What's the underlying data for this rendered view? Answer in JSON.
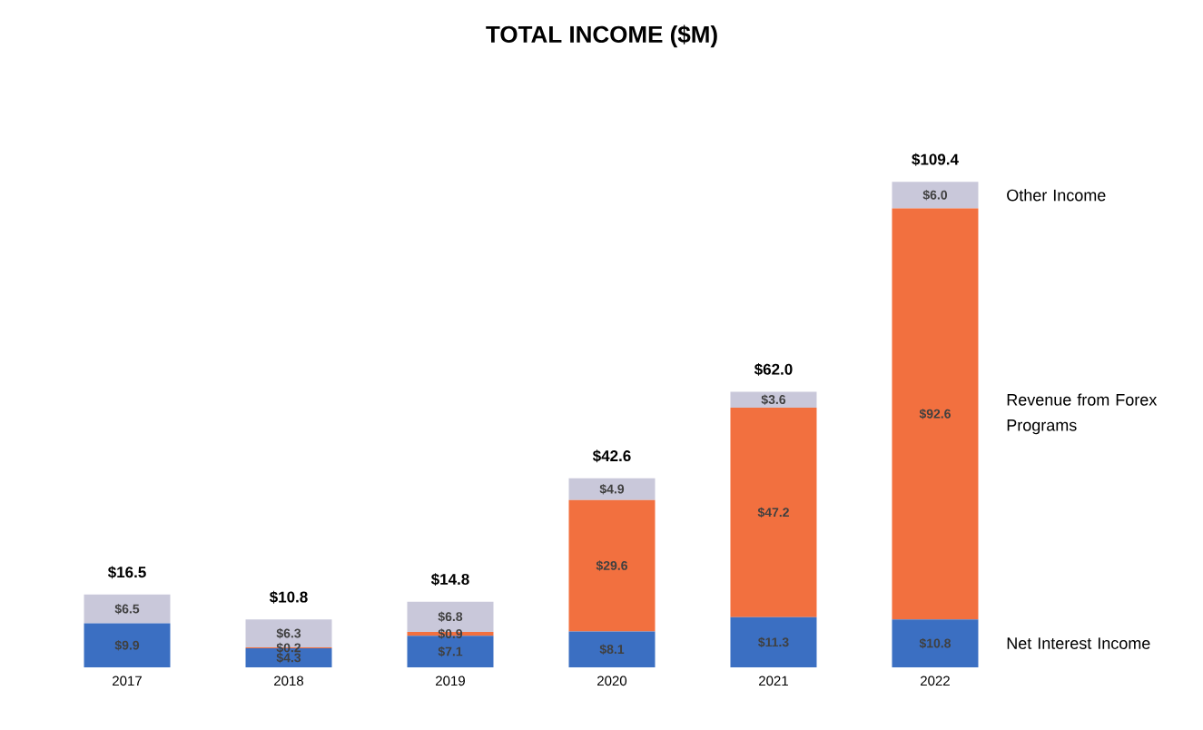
{
  "chart_data": {
    "type": "bar",
    "title": "TOTAL INCOME ($M)",
    "stacked": true,
    "legend": false,
    "categories": [
      "2017",
      "2018",
      "2019",
      "2020",
      "2021",
      "2022"
    ],
    "series": [
      {
        "name": "Net Interest Income",
        "color": "#3b6fc2",
        "values": [
          9.9,
          4.3,
          7.1,
          8.1,
          11.3,
          10.8
        ],
        "value_labels": [
          "$9.9",
          "$4.3",
          "$7.1",
          "$8.1",
          "$11.3",
          "$10.8"
        ]
      },
      {
        "name": "Revenue from Forex Programs",
        "color": "#f2703f",
        "values": [
          null,
          0.2,
          0.9,
          29.6,
          47.2,
          92.6
        ],
        "value_labels": [
          null,
          "$0.2",
          "$0.9",
          "$29.6",
          "$47.2",
          "$92.6"
        ]
      },
      {
        "name": "Other Income",
        "color": "#c9c8da",
        "values": [
          6.5,
          6.3,
          6.8,
          4.9,
          3.6,
          6.0
        ],
        "value_labels": [
          "$6.5",
          "$6.3",
          "$6.8",
          "$4.9",
          "$3.6",
          "$6.0"
        ]
      }
    ],
    "totals": [
      "$16.5",
      "$10.8",
      "$14.8",
      "$42.6",
      "$62.0",
      "$109.4"
    ]
  }
}
